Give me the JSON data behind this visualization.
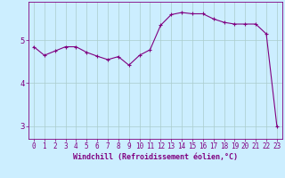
{
  "x": [
    0,
    1,
    2,
    3,
    4,
    5,
    6,
    7,
    8,
    9,
    10,
    11,
    12,
    13,
    14,
    15,
    16,
    17,
    18,
    19,
    20,
    21,
    22,
    23
  ],
  "y": [
    4.85,
    4.65,
    4.75,
    4.85,
    4.85,
    4.72,
    4.63,
    4.55,
    4.62,
    4.42,
    4.65,
    4.78,
    5.35,
    5.6,
    5.65,
    5.62,
    5.62,
    5.5,
    5.42,
    5.38,
    5.38,
    5.38,
    5.15,
    3.0
  ],
  "line_color": "#800080",
  "marker": "+",
  "marker_size": 3,
  "marker_lw": 0.8,
  "line_width": 0.8,
  "bg_color": "#cceeff",
  "grid_color": "#aacccc",
  "xlabel": "Windchill (Refroidissement éolien,°C)",
  "xlabel_color": "#800080",
  "tick_color": "#800080",
  "spine_color": "#800080",
  "xlim": [
    -0.5,
    23.5
  ],
  "ylim": [
    2.7,
    5.9
  ],
  "yticks": [
    3,
    4,
    5
  ],
  "xticks": [
    0,
    1,
    2,
    3,
    4,
    5,
    6,
    7,
    8,
    9,
    10,
    11,
    12,
    13,
    14,
    15,
    16,
    17,
    18,
    19,
    20,
    21,
    22,
    23
  ],
  "tick_fontsize": 5.5,
  "xlabel_fontsize": 6.0,
  "ytick_fontsize": 6.5
}
